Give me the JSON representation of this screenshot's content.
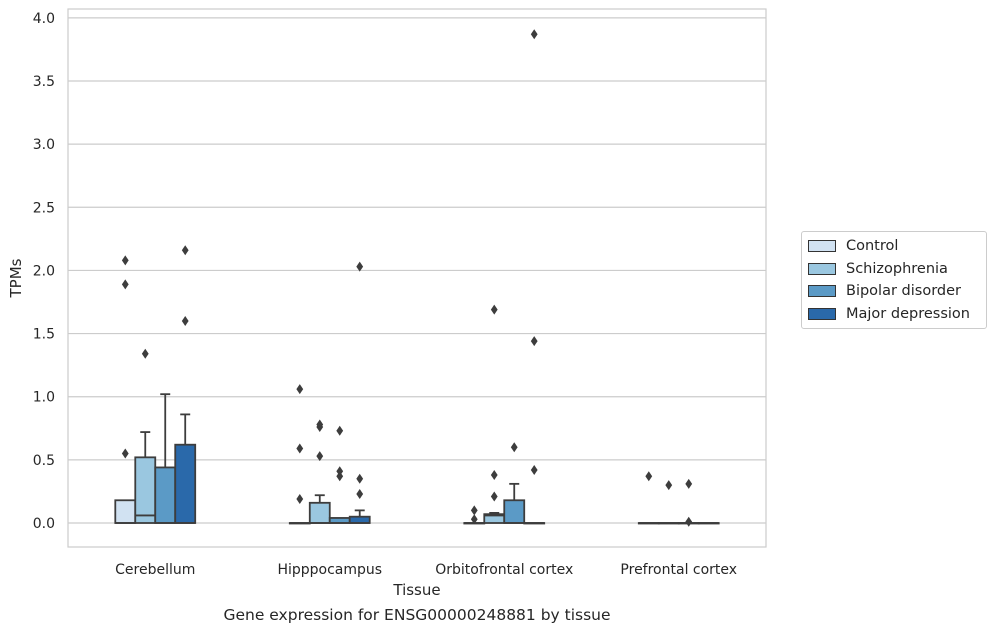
{
  "chart_data": {
    "type": "box",
    "xlabel": "Tissue",
    "ylabel": "TPMs",
    "ylim": [
      -0.19,
      4.07
    ],
    "yticks": [
      "0.0",
      "0.5",
      "1.0",
      "1.5",
      "2.0",
      "2.5",
      "3.0",
      "3.5",
      "4.0"
    ],
    "grid": "horizontal",
    "legend_placement": "right",
    "categories": [
      "Cerebellum",
      "Hipppocampus",
      "Orbitofrontal cortex",
      "Prefrontal cortex"
    ],
    "series": [
      {
        "name": "Control",
        "color": "#d1e2f2",
        "boxes": [
          {
            "q1": 0.0,
            "median": 0.0,
            "q3": 0.18,
            "wlo": 0.0,
            "whi": 0.18,
            "outliers": [
              0.55,
              1.89,
              2.08
            ]
          },
          {
            "q1": 0.0,
            "median": 0.0,
            "q3": 0.0,
            "wlo": 0.0,
            "whi": 0.0,
            "outliers": [
              0.19,
              0.59,
              1.06
            ]
          },
          {
            "q1": 0.0,
            "median": 0.0,
            "q3": 0.0,
            "wlo": 0.0,
            "whi": 0.0,
            "outliers": [
              0.03,
              0.1
            ]
          },
          {
            "q1": 0.0,
            "median": 0.0,
            "q3": 0.0,
            "wlo": 0.0,
            "whi": 0.0,
            "outliers": [
              0.37
            ]
          }
        ]
      },
      {
        "name": "Schizophrenia",
        "color": "#9ac7e0",
        "boxes": [
          {
            "q1": 0.0,
            "median": 0.06,
            "q3": 0.52,
            "wlo": 0.0,
            "whi": 0.72,
            "outliers": [
              1.34
            ]
          },
          {
            "q1": 0.0,
            "median": 0.0,
            "q3": 0.16,
            "wlo": 0.0,
            "whi": 0.22,
            "outliers": [
              0.53,
              0.76,
              0.78
            ]
          },
          {
            "q1": 0.0,
            "median": 0.06,
            "q3": 0.07,
            "wlo": 0.0,
            "whi": 0.08,
            "outliers": [
              0.21,
              0.38,
              1.69
            ]
          },
          {
            "q1": 0.0,
            "median": 0.0,
            "q3": 0.0,
            "wlo": 0.0,
            "whi": 0.0,
            "outliers": [
              0.3
            ]
          }
        ]
      },
      {
        "name": "Bipolar disorder",
        "color": "#5b9ac6",
        "boxes": [
          {
            "q1": 0.0,
            "median": 0.0,
            "q3": 0.44,
            "wlo": 0.0,
            "whi": 1.02,
            "outliers": []
          },
          {
            "q1": 0.0,
            "median": 0.0,
            "q3": 0.04,
            "wlo": 0.0,
            "whi": 0.04,
            "outliers": [
              0.37,
              0.41,
              0.73
            ]
          },
          {
            "q1": 0.0,
            "median": 0.0,
            "q3": 0.18,
            "wlo": 0.0,
            "whi": 0.31,
            "outliers": [
              0.6
            ]
          },
          {
            "q1": 0.0,
            "median": 0.0,
            "q3": 0.0,
            "wlo": 0.0,
            "whi": 0.0,
            "outliers": [
              0.01,
              0.31
            ]
          }
        ]
      },
      {
        "name": "Major depression",
        "color": "#2a69aa",
        "boxes": [
          {
            "q1": 0.0,
            "median": 0.0,
            "q3": 0.62,
            "wlo": 0.0,
            "whi": 0.86,
            "outliers": [
              1.6,
              2.16
            ]
          },
          {
            "q1": 0.0,
            "median": 0.0,
            "q3": 0.05,
            "wlo": 0.0,
            "whi": 0.1,
            "outliers": [
              0.23,
              0.35,
              2.03
            ]
          },
          {
            "q1": 0.0,
            "median": 0.0,
            "q3": 0.0,
            "wlo": 0.0,
            "whi": 0.0,
            "outliers": [
              0.42,
              1.44,
              3.87
            ]
          },
          {
            "q1": 0.0,
            "median": 0.0,
            "q3": 0.0,
            "wlo": 0.0,
            "whi": 0.0,
            "outliers": []
          }
        ]
      }
    ]
  },
  "caption": "Gene expression for ENSG00000248881 by tissue"
}
